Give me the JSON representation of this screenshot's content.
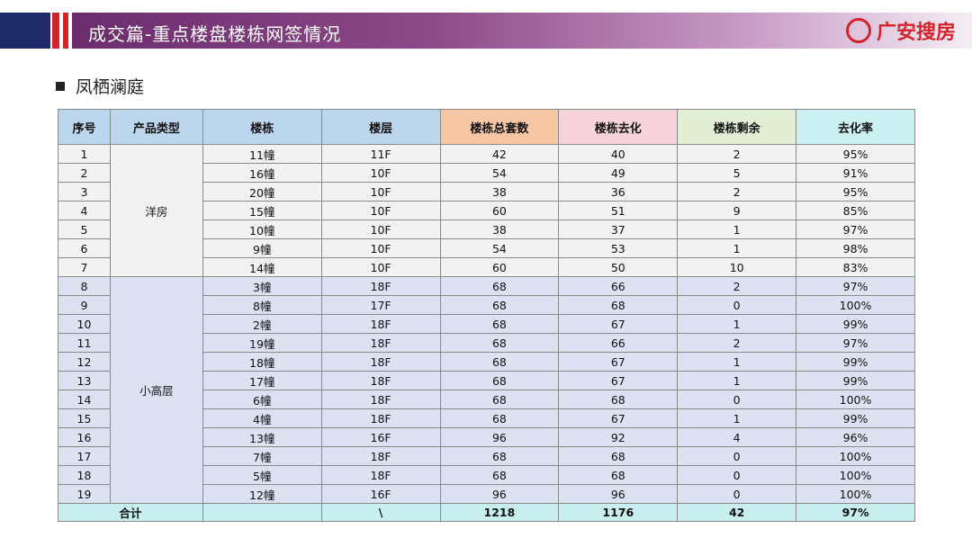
{
  "header": {
    "title": "成交篇-重点楼盘楼栋网签情况",
    "logo_text": "广安搜房",
    "logo_icon": "soufang-logo-icon"
  },
  "section": {
    "title": "凤栖澜庭"
  },
  "table": {
    "columns": [
      "序号",
      "产品类型",
      "楼栋",
      "楼层",
      "楼栋总套数",
      "楼栋去化",
      "楼栋剩余",
      "去化率"
    ],
    "groups": [
      {
        "type": "洋房",
        "rows": [
          [
            "1",
            "11幢",
            "11F",
            "42",
            "40",
            "2",
            "95%"
          ],
          [
            "2",
            "16幢",
            "10F",
            "54",
            "49",
            "5",
            "91%"
          ],
          [
            "3",
            "20幢",
            "10F",
            "38",
            "36",
            "2",
            "95%"
          ],
          [
            "4",
            "15幢",
            "10F",
            "60",
            "51",
            "9",
            "85%"
          ],
          [
            "5",
            "10幢",
            "10F",
            "38",
            "37",
            "1",
            "97%"
          ],
          [
            "6",
            "9幢",
            "10F",
            "54",
            "53",
            "1",
            "98%"
          ],
          [
            "7",
            "14幢",
            "10F",
            "60",
            "50",
            "10",
            "83%"
          ]
        ]
      },
      {
        "type": "小高层",
        "rows": [
          [
            "8",
            "3幢",
            "18F",
            "68",
            "66",
            "2",
            "97%"
          ],
          [
            "9",
            "8幢",
            "17F",
            "68",
            "68",
            "0",
            "100%"
          ],
          [
            "10",
            "2幢",
            "18F",
            "68",
            "67",
            "1",
            "99%"
          ],
          [
            "11",
            "19幢",
            "18F",
            "68",
            "66",
            "2",
            "97%"
          ],
          [
            "12",
            "18幢",
            "18F",
            "68",
            "67",
            "1",
            "99%"
          ],
          [
            "13",
            "17幢",
            "18F",
            "68",
            "67",
            "1",
            "99%"
          ],
          [
            "14",
            "6幢",
            "18F",
            "68",
            "68",
            "0",
            "100%"
          ],
          [
            "15",
            "4幢",
            "18F",
            "68",
            "67",
            "1",
            "99%"
          ],
          [
            "16",
            "13幢",
            "16F",
            "96",
            "92",
            "4",
            "96%"
          ],
          [
            "17",
            "7幢",
            "18F",
            "68",
            "68",
            "0",
            "100%"
          ],
          [
            "18",
            "5幢",
            "18F",
            "68",
            "68",
            "0",
            "100%"
          ],
          [
            "19",
            "12幢",
            "16F",
            "96",
            "96",
            "0",
            "100%"
          ]
        ]
      }
    ],
    "total": {
      "label": "合计",
      "floor_placeholder": "\\",
      "total_units": "1218",
      "sold": "1176",
      "remaining": "42",
      "rate": "97%"
    }
  }
}
